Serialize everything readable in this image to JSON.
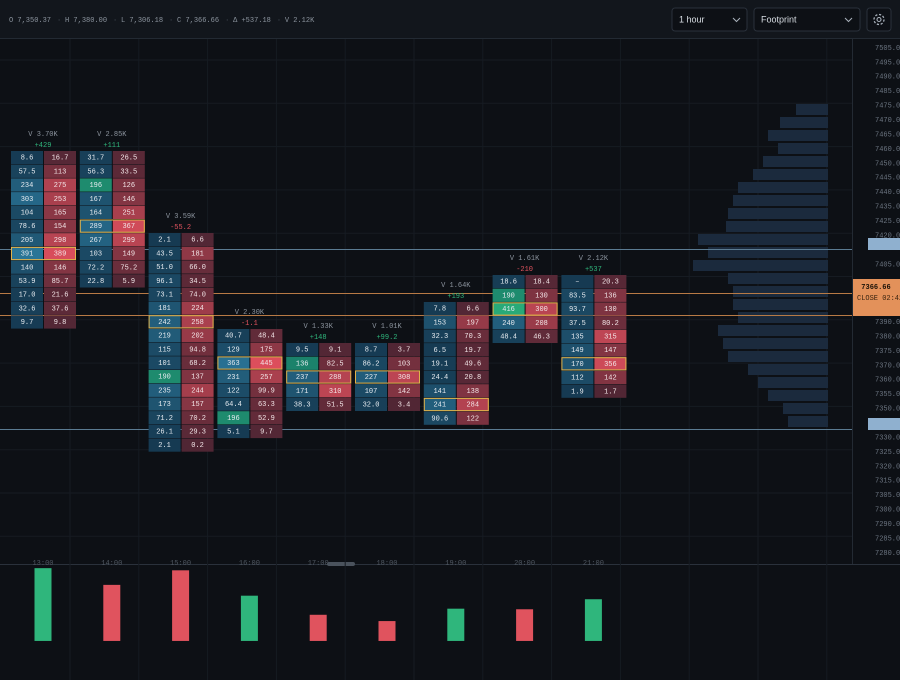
{
  "header": {
    "ohlc": [
      "O 7,350.37",
      "H 7,380.00",
      "L 7,306.18",
      "C 7,366.66",
      "Δ +537.18",
      "V 2.12K"
    ],
    "interval": "1 hour",
    "chart_type": "Footprint"
  },
  "price_axis": {
    "labels": [
      "7505.00",
      "7495.00",
      "7490.00",
      "7485.00",
      "7475.00",
      "7470.00",
      "7465.00",
      "7460.00",
      "7450.00",
      "7445.00",
      "7440.00",
      "7435.00",
      "7425.00",
      "7420.00",
      null,
      "7405.00",
      null,
      null,
      null,
      "7390.00",
      "7380.00",
      "7375.00",
      "7370.00",
      "7360.00",
      "7355.00",
      "7350.00",
      null,
      "7330.00",
      "7325.00",
      "7320.00",
      "7315.00",
      "7305.00",
      "7300.00",
      "7290.00",
      "7285.00",
      "7280.00"
    ],
    "last_price": "7366.66",
    "close_timer": "CLOSE 02:42"
  },
  "candles": [
    {
      "time": "13:00",
      "volume": "V 3.70K",
      "delta": "+429",
      "rows": [
        [
          "8.6",
          "16.7"
        ],
        [
          "57.5",
          "113"
        ],
        [
          "234",
          "275"
        ],
        [
          "303",
          "253"
        ],
        [
          "104",
          "165"
        ],
        [
          "78.6",
          "154"
        ],
        [
          "205",
          "298"
        ],
        [
          "391",
          "389"
        ],
        [
          "140",
          "146"
        ],
        [
          "53.9",
          "85.7"
        ],
        [
          "17.0",
          "21.6"
        ],
        [
          "32.6",
          "37.6"
        ],
        [
          "9.7",
          "9.8"
        ]
      ]
    },
    {
      "time": "14:00",
      "volume": "V 2.85K",
      "delta": "+111",
      "rows": [
        [
          "31.7",
          "26.5"
        ],
        [
          "56.3",
          "33.5"
        ],
        [
          "196",
          "126"
        ],
        [
          "167",
          "146"
        ],
        [
          "164",
          "251"
        ],
        [
          "289",
          "367"
        ],
        [
          "267",
          "299"
        ],
        [
          "103",
          "149"
        ],
        [
          "72.2",
          "75.2"
        ],
        [
          "22.8",
          "5.9"
        ]
      ]
    },
    {
      "time": "15:00",
      "volume": "V 3.59K",
      "delta": "-55.2",
      "rows": [
        [
          "2.1",
          "6.6"
        ],
        [
          "43.5",
          "181"
        ],
        [
          "51.0",
          "66.0"
        ],
        [
          "96.1",
          "34.5"
        ],
        [
          "73.1",
          "74.0"
        ],
        [
          "181",
          "224"
        ],
        [
          "242",
          "258"
        ],
        [
          "219",
          "202"
        ],
        [
          "115",
          "94.8"
        ],
        [
          "101",
          "68.2"
        ],
        [
          "190",
          "137"
        ],
        [
          "235",
          "244"
        ],
        [
          "173",
          "157"
        ],
        [
          "71.2",
          "70.2"
        ],
        [
          "26.1",
          "29.3"
        ],
        [
          "2.1",
          "0.2"
        ]
      ]
    },
    {
      "time": "16:00",
      "volume": "V 2.30K",
      "delta": "-1.1",
      "rows": [
        [
          "40.7",
          "48.4"
        ],
        [
          "129",
          "175"
        ],
        [
          "363",
          "445"
        ],
        [
          "231",
          "257"
        ],
        [
          "122",
          "99.9"
        ],
        [
          "64.4",
          "63.3"
        ],
        [
          "196",
          "52.9"
        ],
        [
          "5.1",
          "9.7"
        ]
      ]
    },
    {
      "time": "17:00",
      "volume": "V 1.33K",
      "delta": "+148",
      "rows": [
        [
          "9.5",
          "9.1"
        ],
        [
          "136",
          "82.5"
        ],
        [
          "237",
          "288"
        ],
        [
          "171",
          "310"
        ],
        [
          "38.3",
          "51.5"
        ]
      ]
    },
    {
      "time": "18:00",
      "volume": "V 1.01K",
      "delta": "+99.2",
      "rows": [
        [
          "8.7",
          "3.7"
        ],
        [
          "86.2",
          "103"
        ],
        [
          "227",
          "308"
        ],
        [
          "107",
          "142"
        ],
        [
          "32.0",
          "3.4"
        ]
      ]
    },
    {
      "time": "19:00",
      "volume": "V 1.64K",
      "delta": "+193",
      "rows": [
        [
          "7.8",
          "6.6"
        ],
        [
          "153",
          "197"
        ],
        [
          "32.3",
          "70.3"
        ],
        [
          "6.5",
          "19.7"
        ],
        [
          "19.1",
          "49.6"
        ],
        [
          "24.4",
          "20.8"
        ],
        [
          "141",
          "138"
        ],
        [
          "241",
          "284"
        ],
        [
          "90.6",
          "122"
        ]
      ]
    },
    {
      "time": "20:00",
      "volume": "V 1.61K",
      "delta": "-210",
      "rows": [
        [
          "18.6",
          "18.4"
        ],
        [
          "190",
          "130"
        ],
        [
          "416",
          "300"
        ],
        [
          "240",
          "208"
        ],
        [
          "48.4",
          "46.3"
        ]
      ]
    },
    {
      "time": "21:00",
      "volume": "V 2.12K",
      "delta": "+537",
      "rows": [
        [
          "–",
          "20.3"
        ],
        [
          "83.5",
          "136"
        ],
        [
          "93.7",
          "130"
        ],
        [
          "37.5",
          "80.2"
        ],
        [
          "135",
          "315"
        ],
        [
          "149",
          "147"
        ],
        [
          "170",
          "356"
        ],
        [
          "112",
          "142"
        ],
        [
          "1.9",
          "1.7"
        ]
      ]
    }
  ],
  "volume_bars": {
    "values": [
      3700,
      2850,
      3590,
      2300,
      1330,
      1010,
      1640,
      1610,
      2120
    ],
    "colors": [
      "#2fb67c",
      "#e0535e",
      "#e0535e",
      "#2fb67c",
      "#e0535e",
      "#e0535e",
      "#2fb67c",
      "#e0535e",
      "#2fb67c"
    ],
    "ylim": [
      -1070,
      3860
    ]
  },
  "volume_profile": {
    "color": "#1b2a3d",
    "values": [
      32,
      48,
      60,
      50,
      65,
      75,
      90,
      95,
      100,
      102,
      130,
      120,
      135,
      100,
      95,
      95,
      90,
      110,
      105,
      100,
      80,
      70,
      60,
      45,
      40
    ]
  }
}
